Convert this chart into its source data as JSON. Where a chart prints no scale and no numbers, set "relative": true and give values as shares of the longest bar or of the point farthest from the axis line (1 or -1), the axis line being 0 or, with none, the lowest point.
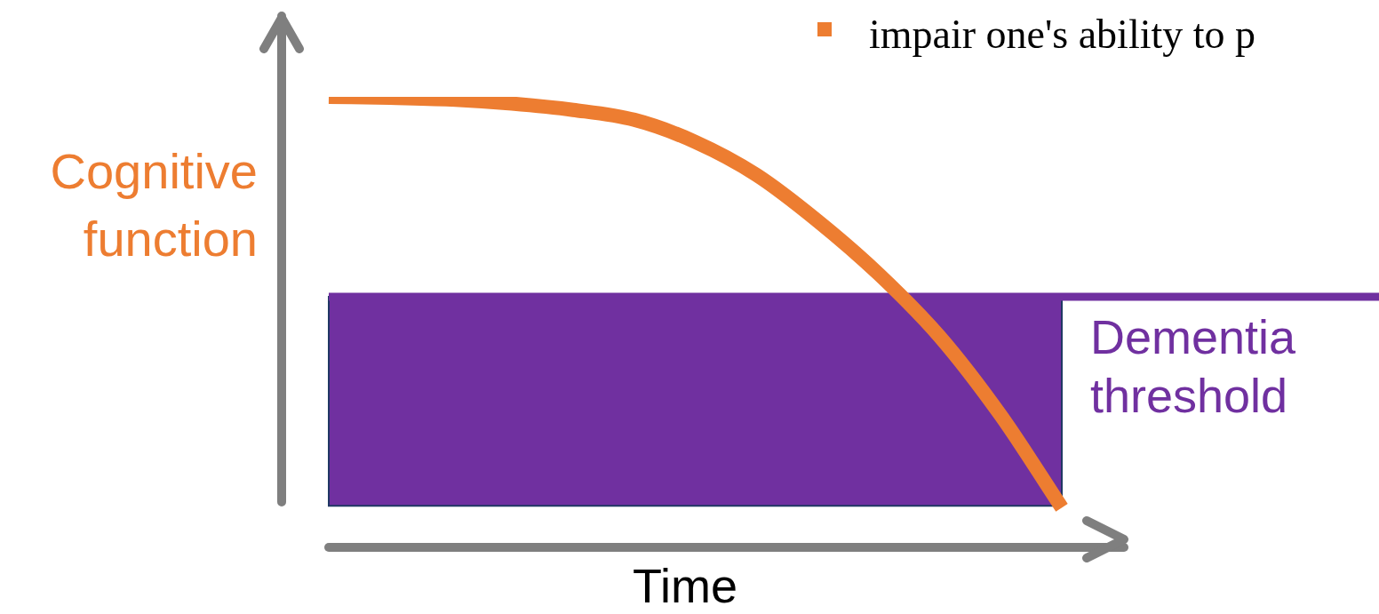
{
  "chart_data": {
    "type": "line",
    "relative": true,
    "marker": "none",
    "ylabel": "Cognitive function",
    "xlabel": "Time",
    "annotations": [
      "impair one's ability to p"
    ],
    "categories": [
      null,
      null,
      null,
      null,
      null,
      null,
      null,
      null,
      null,
      null,
      null,
      null,
      null
    ],
    "series": [
      {
        "color": "#ed7d31",
        "values": [
          1,
          0.998,
          0.994,
          0.985,
          0.971,
          0.949,
          0.9,
          0.827,
          0.725,
          0.607,
          0.468,
          0.293,
          0.088
        ]
      }
    ],
    "ref_lines": [
      {
        "axis": "y",
        "value": 0.556,
        "label": "Dementia threshold",
        "color": "#7030a0"
      }
    ],
    "bands": [
      {
        "axis": "y",
        "from": 0.092,
        "to": 0.556,
        "color": "#7030a0"
      }
    ]
  }
}
